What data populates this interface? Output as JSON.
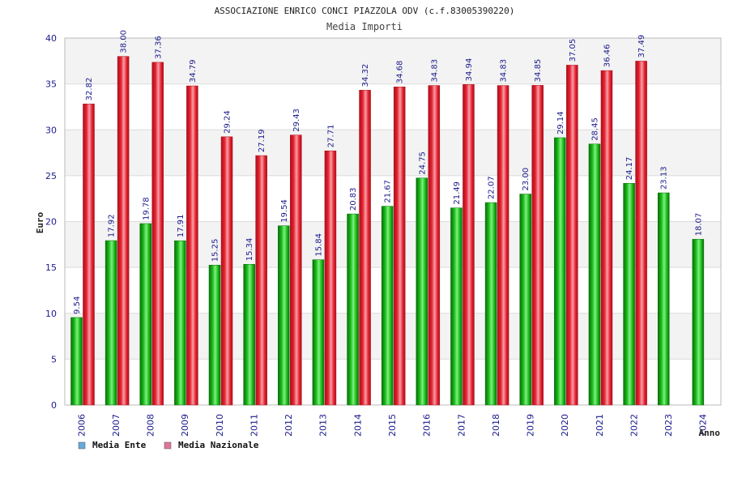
{
  "chart_data": {
    "type": "bar",
    "title": "ASSOCIAZIONE ENRICO CONCI PIAZZOLA ODV (c.f.83005390220)",
    "subtitle": "Media Importi",
    "xlabel": "Anno",
    "ylabel": "Euro",
    "ylim": [
      0,
      40
    ],
    "yticks": [
      0,
      5,
      10,
      15,
      20,
      25,
      30,
      35,
      40
    ],
    "grid": true,
    "legend_position": "bottom-left",
    "categories": [
      "2006",
      "2007",
      "2008",
      "2009",
      "2010",
      "2011",
      "2012",
      "2013",
      "2014",
      "2015",
      "2016",
      "2017",
      "2018",
      "2019",
      "2020",
      "2021",
      "2022",
      "2023",
      "2024"
    ],
    "series": [
      {
        "name": "Media Ente",
        "legend_color": "#66aadd",
        "bar_color": "#119911",
        "values": [
          9.54,
          17.92,
          19.78,
          17.91,
          15.25,
          15.34,
          19.54,
          15.84,
          20.83,
          21.67,
          24.75,
          21.49,
          22.07,
          23.0,
          29.14,
          28.45,
          24.17,
          23.13,
          18.07
        ],
        "labels": [
          "9.54",
          "17.92",
          "19.78",
          "17.91",
          "15.25",
          "15.34",
          "19.54",
          "15.84",
          "20.83",
          "21.67",
          "24.75",
          "21.49",
          "22.07",
          "23.00",
          "29.14",
          "28.45",
          "24.17",
          "23.13",
          "18.07"
        ]
      },
      {
        "name": "Media Nazionale",
        "legend_color": "#dd7799",
        "bar_color": "#dd1122",
        "values": [
          32.82,
          38.0,
          37.36,
          34.79,
          29.24,
          27.19,
          29.43,
          27.71,
          34.32,
          34.68,
          34.83,
          34.94,
          34.83,
          34.85,
          37.05,
          36.46,
          37.49,
          null,
          null
        ],
        "labels": [
          "32.82",
          "38.00",
          "37.36",
          "34.79",
          "29.24",
          "27.19",
          "29.43",
          "27.71",
          "34.32",
          "34.68",
          "34.83",
          "34.94",
          "34.83",
          "34.85",
          "37.05",
          "36.46",
          "37.49",
          null,
          null
        ]
      }
    ]
  }
}
